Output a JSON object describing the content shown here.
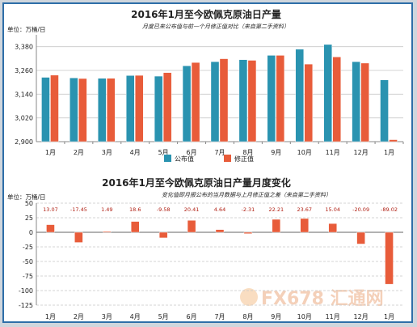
{
  "chart_data": [
    {
      "type": "bar",
      "title": "2016年1月至今欧佩克原油日产量",
      "subtitle": "月度已来公布值与前一个月修正值对比（来自第二手资料）",
      "unit_label": "单位：万桶/日",
      "categories": [
        "1月",
        "2月",
        "3月",
        "4月",
        "5月",
        "6月",
        "7月",
        "8月",
        "9月",
        "10月",
        "11月",
        "12月",
        "1月"
      ],
      "ylim": [
        2900,
        3440
      ],
      "yticks": [
        2900,
        3020,
        3140,
        3260,
        3380,
        3500
      ],
      "grid": true,
      "legend_position": "bottom",
      "series": [
        {
          "name": "公布值",
          "color": "#2a93b0",
          "values": [
            3225,
            3222,
            3220,
            3234,
            3231,
            3283,
            3304,
            3314,
            3336,
            3367,
            3391,
            3304,
            3212
          ]
        },
        {
          "name": "修正值",
          "color": "#e85c3a",
          "values": [
            3236,
            3219,
            3220,
            3235,
            3249,
            3300,
            3319,
            3311,
            3336,
            3292,
            3328,
            3297,
            2910
          ]
        }
      ]
    },
    {
      "type": "bar",
      "title": "2016年1月至今欧佩克原油日产量月度变化",
      "subtitle": "变化值即月报公布的当月数据与上月修正值之差（来自第二手资料）",
      "unit_label": "单位：万桶/日",
      "categories": [
        "1月",
        "2月",
        "3月",
        "4月",
        "5月",
        "6月",
        "7月",
        "8月",
        "9月",
        "10月",
        "11月",
        "12月",
        "1月"
      ],
      "ylim": [
        -125,
        50
      ],
      "yticks": [
        -125,
        -100,
        -75,
        -50,
        -25,
        0,
        25,
        50
      ],
      "grid": true,
      "series": [
        {
          "color": "#e85c3a",
          "values": [
            13.07,
            -17.45,
            1.49,
            18.6,
            -9.58,
            20.41,
            4.64,
            -2.31,
            22.21,
            23.67,
            15.04,
            -20.09,
            -89.02
          ]
        }
      ],
      "data_labels": [
        "13.07",
        "-17.45",
        "1.49",
        "18.6",
        "-9.58",
        "20.41",
        "4.64",
        "-2.31",
        "22.21",
        "23.67",
        "15.04",
        "-20.09",
        "-89.02"
      ]
    }
  ],
  "watermark": {
    "text": "FX678 汇通网"
  }
}
